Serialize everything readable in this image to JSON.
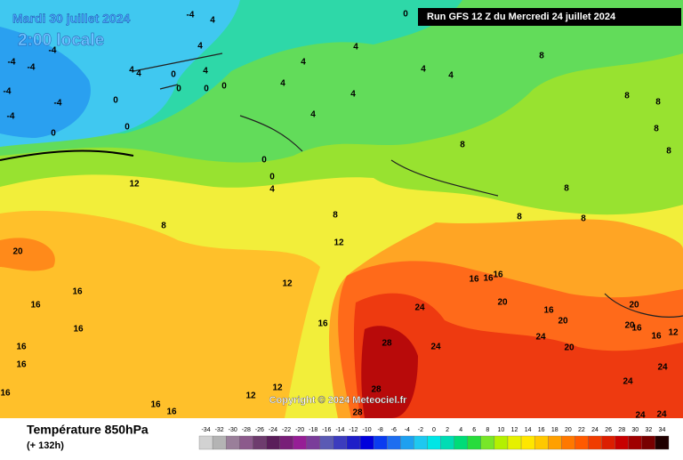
{
  "header": {
    "date": "Mardi 30 juillet 2024",
    "time": "2:00 locale",
    "run": "Run GFS 12 Z du Mercredi 24 juillet 2024"
  },
  "map": {
    "copyright": "Copyright © 2024 Meteociel.fr",
    "contour_labels": [
      -4,
      -4,
      -4,
      -4,
      -4,
      -4,
      -4,
      4,
      4,
      0,
      0,
      0,
      0,
      0,
      0,
      0,
      4,
      4,
      4,
      4,
      4,
      4,
      4,
      4,
      4,
      4,
      0,
      0,
      4,
      0,
      8,
      8,
      8,
      8,
      8,
      8,
      8,
      8,
      8,
      8,
      8,
      12,
      12,
      12,
      20,
      16,
      16,
      16,
      16,
      16,
      16,
      16,
      16,
      16,
      16,
      16,
      16,
      16,
      16,
      24,
      28,
      24,
      28,
      28,
      20,
      20,
      20,
      24,
      20,
      20,
      16,
      12,
      24,
      24,
      24,
      24,
      12,
      12
    ]
  },
  "footer": {
    "title": "Température 850hPa",
    "lead_time": "(+ 132h)"
  },
  "color_scale": {
    "values": [
      -34,
      -32,
      -30,
      -28,
      -26,
      -24,
      -22,
      -20,
      -18,
      -16,
      -14,
      -12,
      -10,
      -8,
      -6,
      -4,
      -2,
      0,
      2,
      4,
      6,
      8,
      10,
      12,
      14,
      16,
      18,
      20,
      22,
      24,
      26,
      28,
      30,
      32,
      34
    ],
    "colors": [
      "#d2d2d2",
      "#b4b4b4",
      "#9a7f9a",
      "#8c5a8c",
      "#6e3c6e",
      "#5a1e5a",
      "#781e78",
      "#961e96",
      "#7a3c9a",
      "#5a5ab4",
      "#3c3cbe",
      "#1e1ec8",
      "#0000dc",
      "#0a3cf0",
      "#1e6ef0",
      "#1ea0f0",
      "#1ec8f0",
      "#00e6e6",
      "#00dcb4",
      "#00dc78",
      "#28dc3c",
      "#78e628",
      "#b4f000",
      "#e6f000",
      "#ffe600",
      "#ffc800",
      "#ffa000",
      "#ff7800",
      "#ff5a00",
      "#f03c00",
      "#dc1e00",
      "#c80000",
      "#a00000",
      "#780000",
      "#200000"
    ]
  }
}
